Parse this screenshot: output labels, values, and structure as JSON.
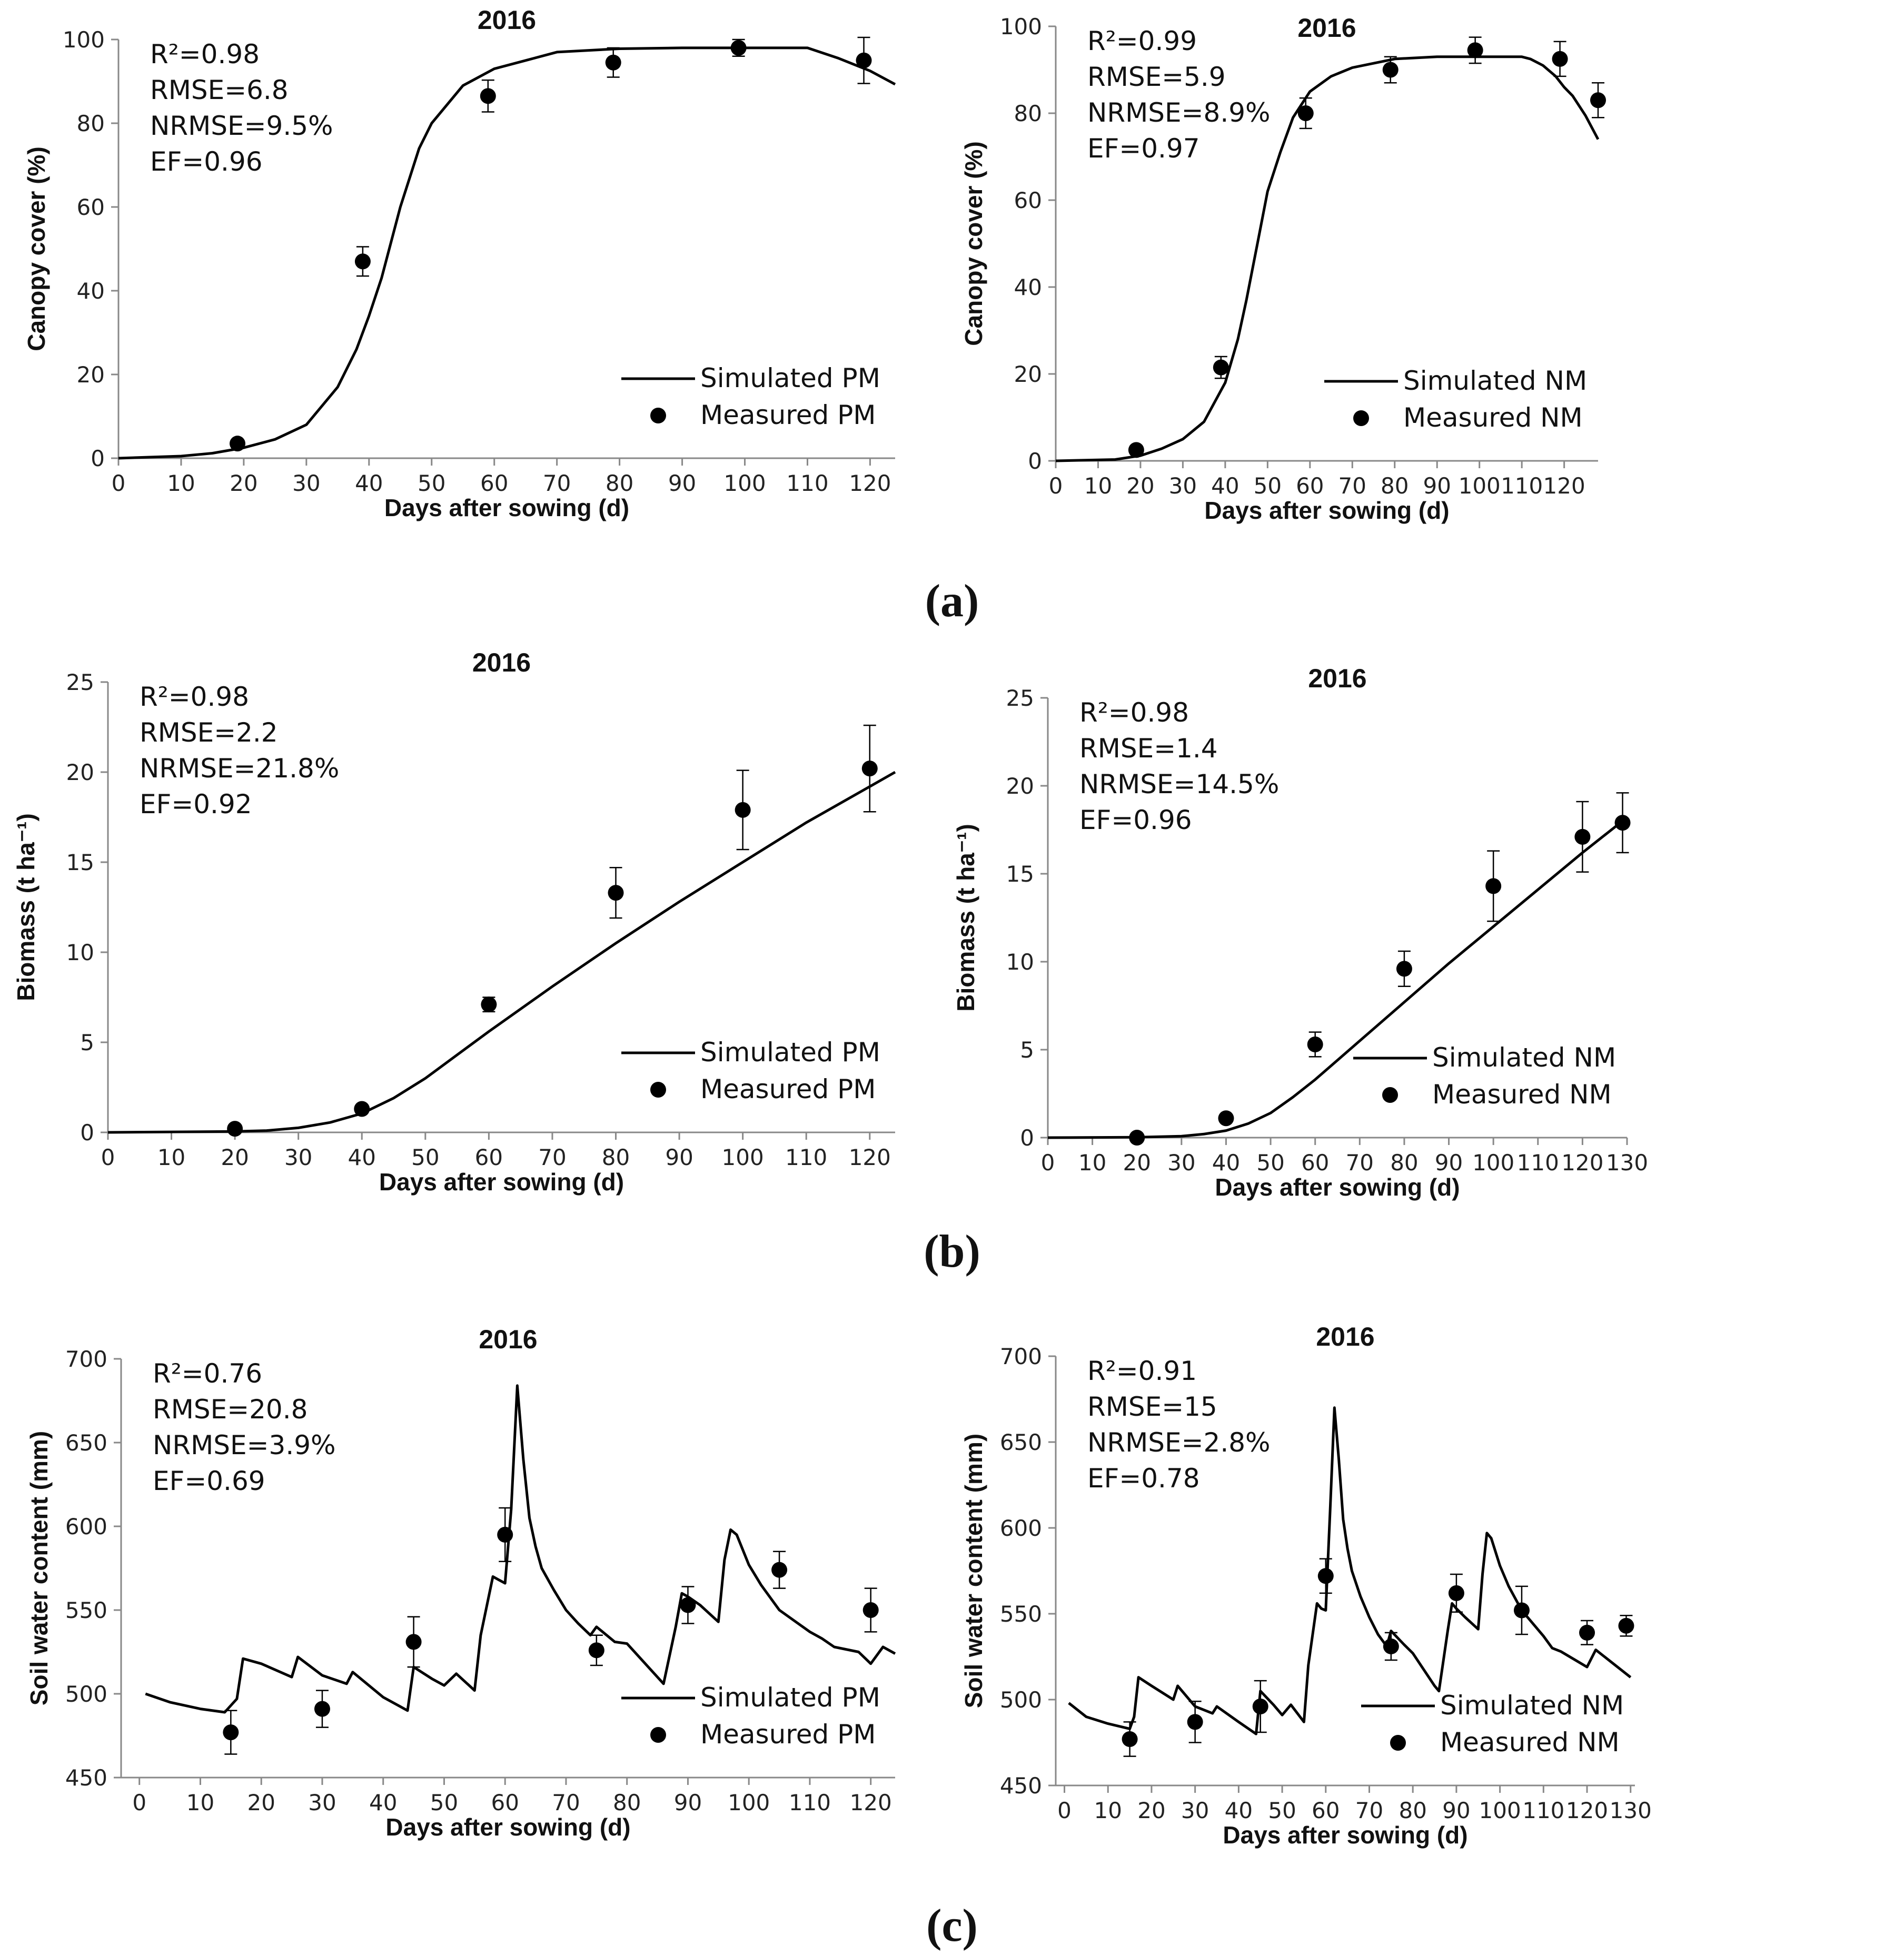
{
  "chart_data": [
    {
      "panel": "a-left",
      "type": "line",
      "title": "2016",
      "xlabel": "Days after sowing (d)",
      "ylabel": "Canopy cover (%)",
      "xlim": [
        0,
        124
      ],
      "ylim": [
        0,
        100
      ],
      "xticks": [
        0,
        10,
        20,
        30,
        40,
        50,
        60,
        70,
        80,
        90,
        100,
        110,
        120
      ],
      "yticks": [
        0,
        20,
        40,
        60,
        80,
        100
      ],
      "stats": [
        "R²=0.98",
        "RMSE=6.8",
        "NRMSE=9.5%",
        "EF=0.96"
      ],
      "legend": [
        "Simulated PM",
        "Measured PM"
      ],
      "legend_position": "bottom-right",
      "series": [
        {
          "name": "Simulated PM",
          "kind": "line",
          "x": [
            0,
            10,
            15,
            20,
            25,
            30,
            35,
            38,
            40,
            42,
            45,
            48,
            50,
            55,
            60,
            65,
            70,
            80,
            90,
            100,
            110,
            115,
            120,
            124
          ],
          "y": [
            0,
            0.5,
            1.2,
            2.5,
            4.5,
            8,
            17,
            26,
            34,
            43,
            60,
            74,
            80,
            89,
            93,
            95,
            97,
            97.8,
            98,
            98,
            98,
            95.5,
            92.5,
            89.3
          ]
        },
        {
          "name": "Measured PM",
          "kind": "points",
          "x": [
            19,
            39,
            59,
            79,
            99,
            119
          ],
          "y": [
            3.5,
            47,
            86.5,
            94.5,
            98,
            95
          ],
          "err": [
            1,
            3.5,
            3.8,
            3.5,
            2,
            5.5
          ]
        }
      ]
    },
    {
      "panel": "a-right",
      "type": "line",
      "title": "2016",
      "xlabel": "Days after sowing (d)",
      "ylabel": "Canopy cover (%)",
      "xlim": [
        0,
        128
      ],
      "ylim": [
        0,
        100
      ],
      "xticks": [
        0,
        10,
        20,
        30,
        40,
        50,
        60,
        70,
        80,
        90,
        100,
        110,
        120
      ],
      "yticks": [
        0,
        20,
        40,
        60,
        80,
        100
      ],
      "stats": [
        "R²=0.99",
        "RMSE=5.9",
        "NRMSE=8.9%",
        "EF=0.97"
      ],
      "legend": [
        "Simulated NM",
        "Measured NM"
      ],
      "legend_position": "bottom-right",
      "series": [
        {
          "name": "Simulated NM",
          "kind": "line",
          "x": [
            0,
            14,
            20,
            25,
            30,
            35,
            40,
            43,
            45,
            48,
            50,
            53,
            56,
            60,
            65,
            70,
            80,
            90,
            100,
            110,
            112,
            115,
            118,
            120,
            122,
            125,
            128
          ],
          "y": [
            0,
            0.3,
            1.2,
            2.8,
            5,
            9,
            18,
            28,
            37,
            52,
            62,
            71,
            79,
            85,
            88.5,
            90.5,
            92.5,
            93,
            93,
            93,
            92.5,
            91,
            88.5,
            86,
            84,
            79.5,
            74
          ]
        },
        {
          "name": "Measured NM",
          "kind": "points",
          "x": [
            19,
            39,
            59,
            79,
            99,
            119,
            128
          ],
          "y": [
            2.5,
            21.5,
            80,
            90,
            94.5,
            92.5,
            83
          ],
          "err": [
            1,
            2.5,
            3.5,
            3,
            3,
            4,
            4
          ]
        }
      ]
    },
    {
      "panel": "b-left",
      "type": "line",
      "title": "2016",
      "xlabel": "Days after sowing (d)",
      "ylabel": "Biomass (t ha⁻¹)",
      "xlim": [
        0,
        124
      ],
      "ylim": [
        0,
        25
      ],
      "xticks": [
        0,
        10,
        20,
        30,
        40,
        50,
        60,
        70,
        80,
        90,
        100,
        110,
        120
      ],
      "yticks": [
        0,
        5,
        10,
        15,
        20,
        25
      ],
      "stats": [
        "R²=0.98",
        "RMSE=2.2",
        "NRMSE=21.8%",
        "EF=0.92"
      ],
      "legend": [
        "Simulated PM",
        "Measured PM"
      ],
      "legend_position": "bottom-right",
      "series": [
        {
          "name": "Simulated PM",
          "kind": "line",
          "x": [
            0,
            20,
            25,
            30,
            35,
            40,
            45,
            50,
            55,
            60,
            70,
            80,
            90,
            100,
            110,
            120,
            124
          ],
          "y": [
            0,
            0.05,
            0.1,
            0.25,
            0.55,
            1.05,
            1.9,
            3,
            4.3,
            5.6,
            8.1,
            10.5,
            12.8,
            15,
            17.2,
            19.2,
            20
          ]
        },
        {
          "name": "Measured PM",
          "kind": "points",
          "x": [
            20,
            40,
            60,
            80,
            100,
            120
          ],
          "y": [
            0.2,
            1.3,
            7.1,
            13.3,
            17.9,
            20.2
          ],
          "err": [
            0.1,
            0.2,
            0.4,
            1.4,
            2.2,
            2.4
          ]
        }
      ]
    },
    {
      "panel": "b-right",
      "type": "line",
      "title": "2016",
      "xlabel": "Days after sowing (d)",
      "ylabel": "Biomass (t ha⁻¹)",
      "xlim": [
        0,
        130
      ],
      "ylim": [
        0,
        25
      ],
      "xticks": [
        0,
        10,
        20,
        30,
        40,
        50,
        60,
        70,
        80,
        90,
        100,
        110,
        120,
        130
      ],
      "yticks": [
        0,
        5,
        10,
        15,
        20,
        25
      ],
      "stats": [
        "R²=0.98",
        "RMSE=1.4",
        "NRMSE=14.5%",
        "EF=0.96"
      ],
      "legend": [
        "Simulated NM",
        "Measured NM"
      ],
      "legend_position": "bottom-right",
      "series": [
        {
          "name": "Simulated NM",
          "kind": "line",
          "x": [
            0,
            20,
            30,
            35,
            40,
            45,
            50,
            55,
            60,
            70,
            80,
            90,
            100,
            110,
            120,
            129
          ],
          "y": [
            0,
            0.02,
            0.08,
            0.2,
            0.4,
            0.8,
            1.4,
            2.3,
            3.3,
            5.5,
            7.7,
            9.9,
            12,
            14.1,
            16.2,
            18
          ]
        },
        {
          "name": "Measured NM",
          "kind": "points",
          "x": [
            20,
            40,
            60,
            80,
            100,
            120,
            129
          ],
          "y": [
            0,
            1.1,
            5.3,
            9.6,
            14.3,
            17.1,
            17.9
          ],
          "err": [
            0.1,
            0.2,
            0.7,
            1,
            2,
            2,
            1.7
          ]
        }
      ]
    },
    {
      "panel": "c-left",
      "type": "line",
      "title": "2016",
      "xlabel": "Days after sowing (d)",
      "ylabel": "Soil water content (mm)",
      "xlim": [
        -3,
        124
      ],
      "ylim": [
        450,
        700
      ],
      "xticks": [
        0,
        10,
        20,
        30,
        40,
        50,
        60,
        70,
        80,
        90,
        100,
        110,
        120
      ],
      "yticks": [
        450,
        500,
        550,
        600,
        650,
        700
      ],
      "stats": [
        "R²=0.76",
        "RMSE=20.8",
        "NRMSE=3.9%",
        "EF=0.69"
      ],
      "legend": [
        "Simulated PM",
        "Measured PM"
      ],
      "legend_position": "bottom-right",
      "series": [
        {
          "name": "Simulated PM",
          "kind": "line",
          "x": [
            1,
            5,
            10,
            14,
            16,
            17,
            20,
            25,
            26,
            30,
            34,
            35,
            40,
            44,
            45,
            48,
            50,
            52,
            55,
            56,
            58,
            59,
            60,
            61,
            62,
            63,
            64,
            65,
            66,
            68,
            70,
            72,
            74,
            75,
            76,
            78,
            80,
            85,
            86,
            88,
            89,
            90,
            92,
            95,
            96,
            97,
            98,
            100,
            102,
            105,
            110,
            112,
            114,
            118,
            120,
            122,
            124
          ],
          "y": [
            500,
            495,
            491,
            489,
            497,
            521,
            518,
            510,
            522,
            511,
            506,
            513,
            498,
            490,
            516,
            509,
            505,
            512,
            502,
            535,
            570,
            568,
            566,
            610,
            684,
            640,
            605,
            588,
            575,
            562,
            550,
            542,
            535,
            540,
            537,
            531,
            530,
            510,
            506,
            540,
            560,
            558,
            553,
            543,
            580,
            598,
            595,
            577,
            565,
            550,
            537,
            533,
            528,
            525,
            518,
            528,
            524
          ]
        },
        {
          "name": "Measured PM",
          "kind": "points",
          "x": [
            15,
            30,
            45,
            60,
            75,
            90,
            105,
            120
          ],
          "y": [
            477,
            491,
            531,
            595,
            526,
            553,
            574,
            550
          ],
          "err": [
            13,
            11,
            15,
            16,
            9,
            11,
            11,
            13
          ]
        }
      ]
    },
    {
      "panel": "c-right",
      "type": "line",
      "title": "2016",
      "xlabel": "Days after sowing (d)",
      "ylabel": "Soil water content (mm)",
      "xlim": [
        -2,
        131
      ],
      "ylim": [
        450,
        700
      ],
      "xticks": [
        0,
        10,
        20,
        30,
        40,
        50,
        60,
        70,
        80,
        90,
        100,
        110,
        120,
        130
      ],
      "yticks": [
        450,
        500,
        550,
        600,
        650,
        700
      ],
      "stats": [
        "R²=0.91",
        "RMSE=15",
        "NRMSE=2.8%",
        "EF=0.78"
      ],
      "legend": [
        "Simulated NM",
        "Measured NM"
      ],
      "legend_position": "bottom-right",
      "series": [
        {
          "name": "Simulated NM",
          "kind": "line",
          "x": [
            1,
            5,
            10,
            15,
            16,
            17,
            20,
            25,
            26,
            30,
            34,
            35,
            40,
            44,
            45,
            48,
            50,
            52,
            55,
            56,
            58,
            59,
            60,
            61,
            62,
            63,
            64,
            65,
            66,
            68,
            70,
            72,
            74,
            75,
            78,
            80,
            85,
            86,
            88,
            89,
            90,
            92,
            95,
            96,
            97,
            98,
            100,
            102,
            105,
            110,
            112,
            114,
            118,
            120,
            122,
            126,
            130
          ],
          "y": [
            498,
            490,
            486,
            483,
            490,
            513,
            508,
            500,
            508,
            496,
            492,
            496,
            487,
            480,
            505,
            497,
            491,
            497,
            487,
            520,
            556,
            553,
            552,
            610,
            670,
            640,
            605,
            588,
            575,
            560,
            548,
            538,
            531,
            540,
            532,
            527,
            508,
            505,
            540,
            556,
            553,
            548,
            541,
            573,
            597,
            594,
            578,
            566,
            552,
            537,
            530,
            528,
            522,
            519,
            529,
            521,
            513
          ]
        },
        {
          "name": "Measured NM",
          "kind": "points",
          "x": [
            15,
            30,
            45,
            60,
            75,
            90,
            105,
            120,
            129
          ],
          "y": [
            477,
            487,
            496,
            572,
            531,
            562,
            552,
            539,
            543
          ],
          "err": [
            10,
            12,
            15,
            10,
            8,
            11,
            14,
            7,
            6
          ]
        }
      ]
    }
  ],
  "panel_labels": [
    "(a)",
    "(b)",
    "(c)"
  ],
  "colors": {
    "line": "#000000",
    "axis": "#888888",
    "text": "#111111"
  }
}
